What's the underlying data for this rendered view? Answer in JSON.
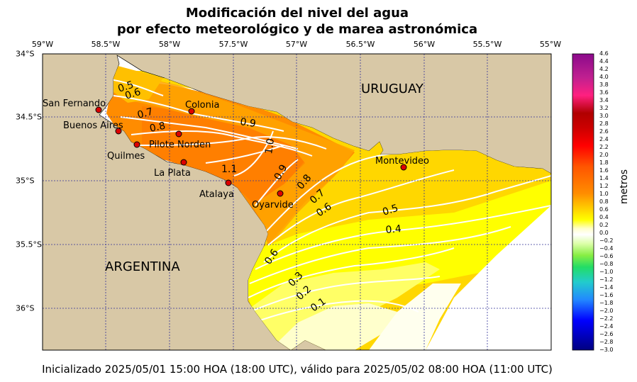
{
  "title_line1": "Modificación del nivel del agua",
  "title_line2": "por efecto meteorológico y de marea astronómica",
  "lon_labels": [
    "59°W",
    "58.5°W",
    "58°W",
    "57.5°W",
    "57°W",
    "56.5°W",
    "56°W",
    "55.5°W",
    "55°W"
  ],
  "lat_labels": [
    "34°S",
    "34.5°S",
    "35°S",
    "35.5°S",
    "36°S"
  ],
  "regions": {
    "uruguay": "URUGUAY",
    "argentina": "ARGENTINA"
  },
  "stations": {
    "san_fernando": "San Fernando",
    "buenos_aires": "Buenos Aires",
    "quilmes": "Quilmes",
    "la_plata": "La Plata",
    "atalaya": "Atalaya",
    "pilote_norden": "Pilote Norden",
    "colonia": "Colonia",
    "oyarvide": "Oyarvide",
    "montevideo": "Montevideo"
  },
  "contour_labels": {
    "c05": "0.5",
    "c06a": "0.6",
    "c07a": "0.7",
    "c08a": "0.8",
    "c09a": "0.9",
    "c10a": "1.0",
    "c11": "1.1",
    "c09b": "0.9",
    "c08b": "0.8",
    "c07b": "0.7",
    "c06b": "0.6",
    "c05b": "0.5",
    "c04": "0.4",
    "c06c": "0.6",
    "c03": "0.3",
    "c02": "0.2",
    "c01": "0.1"
  },
  "colorbar": {
    "label": "metros",
    "ticks": [
      "4.6",
      "4.4",
      "4.2",
      "4.0",
      "3.8",
      "3.6",
      "3.4",
      "3.2",
      "3.0",
      "2.8",
      "2.6",
      "2.4",
      "2.2",
      "2.0",
      "1.8",
      "1.6",
      "1.4",
      "1.2",
      "1.0",
      "0.8",
      "0.6",
      "0.4",
      "0.2",
      "0.0",
      "−0.2",
      "−0.4",
      "−0.6",
      "−0.8",
      "−1.0",
      "−1.2",
      "−1.4",
      "−1.6",
      "−1.8",
      "−2.0",
      "−2.2",
      "−2.4",
      "−2.6",
      "−2.8",
      "−3.0"
    ],
    "colors": {
      "top": "#8b0a8b",
      "red": "#ff0000",
      "orange": "#ff8c00",
      "yellow": "#ffff00",
      "zero": "#ffffff",
      "green": "#22dd66",
      "cyan": "#22cccc",
      "blue": "#0000ff",
      "bottom": "#000080"
    }
  },
  "footer": "Inicializado 2025/05/01 15:00 HOA (18:00 UTC), válido para 2025/05/02 08:00 HOA (11:00 UTC)",
  "colors": {
    "land": "#d8c8a6",
    "grid": "#333399"
  }
}
